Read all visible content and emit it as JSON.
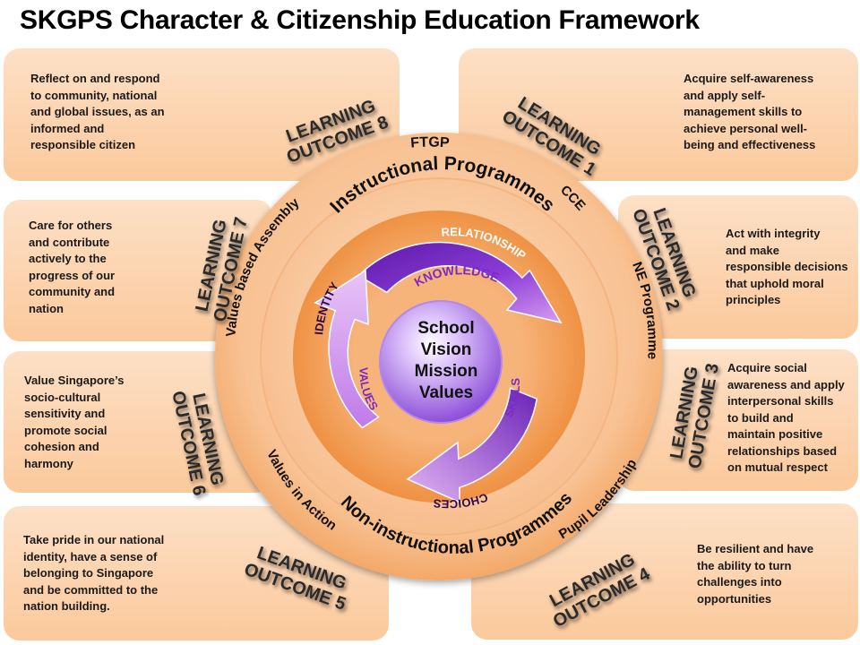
{
  "title": "SKGPS Character & Citizenship Education Framework",
  "outcomes": [
    {
      "label_line1": "LEARNING",
      "label_line2": "OUTCOME 1",
      "text_lines": [
        "Acquire self-awareness",
        "and apply self-",
        "management skills to",
        "achieve personal well-",
        "being and effectiveness"
      ]
    },
    {
      "label_line1": "LEARNING",
      "label_line2": "OUTCOME 2",
      "text_lines": [
        "Act with integrity",
        "and make",
        "responsible decisions",
        "that uphold moral",
        "principles"
      ]
    },
    {
      "label_line1": "LEARNING",
      "label_line2": "OUTCOME 3",
      "text_lines": [
        "Acquire social",
        "awareness and apply",
        "interpersonal skills",
        "to build and",
        "maintain positive",
        "relationships based",
        "on mutual respect"
      ]
    },
    {
      "label_line1": "LEARNING",
      "label_line2": "OUTCOME 4",
      "text_lines": [
        "Be resilient and have",
        "the ability to turn",
        "challenges into",
        "opportunities"
      ]
    },
    {
      "label_line1": "LEARNING",
      "label_line2": "OUTCOME 5",
      "text_lines": [
        "Take pride in our national",
        "identity, have a sense of",
        "belonging to Singapore",
        "and be committed to the",
        "nation building."
      ]
    },
    {
      "label_line1": "LEARNING",
      "label_line2": "OUTCOME 6",
      "text_lines": [
        "Value Singapore’s",
        "socio-cultural",
        "sensitivity and",
        "promote social",
        "cohesion and",
        "harmony"
      ]
    },
    {
      "label_line1": "LEARNING",
      "label_line2": "OUTCOME 7",
      "text_lines": [
        "Care for others",
        "and contribute",
        "actively to the",
        "progress of our",
        "community and",
        "nation"
      ]
    },
    {
      "label_line1": "LEARNING",
      "label_line2": "OUTCOME 8",
      "text_lines": [
        "Reflect on and respond",
        "to community, national",
        "and global issues, as an",
        "informed and",
        "responsible citizen"
      ]
    }
  ],
  "outer_ring": {
    "ftgp": "FTGP",
    "cce": "CCE",
    "ne_programme": "NE Programme",
    "pupil_leadership": "Pupil Leadership",
    "values_in_action": "Values in Action",
    "values_based_assembly": "Values based Assembly"
  },
  "middle_ring": {
    "instructional": "Instructional Programmes",
    "non_instructional": "Non-instructional Programmes"
  },
  "cycle": {
    "relationship": "RELATIONSHIP",
    "knowledge": "KNOWLEDGE",
    "identity": "IDENTITY",
    "values": "VALUES",
    "skills": "SKILLS",
    "choices": "CHOICES"
  },
  "core": {
    "line1": "School",
    "line2": "Vision",
    "line3": "Mission",
    "line4": "Values"
  },
  "colors": {
    "panel": "#fbd3b0",
    "outer_ring": "#f6b47c",
    "middle_ring": "#f9c79c",
    "inner_ring": "#f29a4f",
    "arrows": "#7a2bc2",
    "core": "#b98bf0"
  }
}
